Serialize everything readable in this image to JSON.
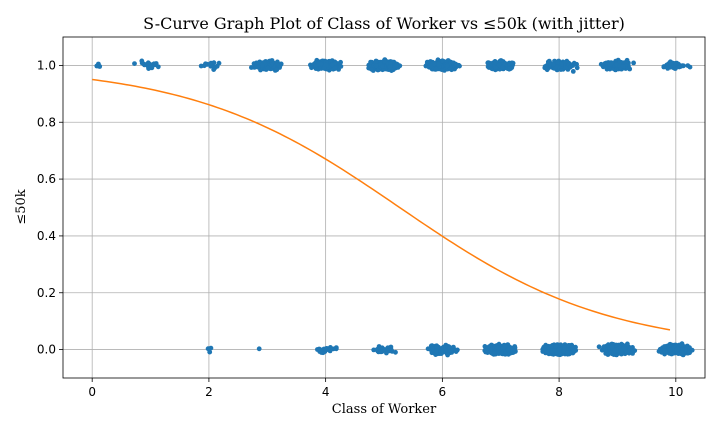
{
  "chart_data": {
    "type": "scatter",
    "title": "S-Curve Graph Plot of Class of Worker vs ≤50k (with jitter)",
    "xlabel": "Class of Worker",
    "ylabel": "≤50k",
    "xlim": [
      -0.5,
      10.5
    ],
    "ylim": [
      -0.1,
      1.1
    ],
    "xticks": [
      0,
      2,
      4,
      6,
      8,
      10
    ],
    "yticks": [
      0.0,
      0.2,
      0.4,
      0.6,
      0.8,
      1.0
    ],
    "xtick_labels": [
      "0",
      "2",
      "4",
      "6",
      "8",
      "10"
    ],
    "ytick_labels": [
      "0.0",
      "0.2",
      "0.4",
      "0.6",
      "0.8",
      "1.0"
    ],
    "grid": true,
    "jitter": {
      "x": 0.18,
      "y": 0.012
    },
    "series": [
      {
        "kind": "points",
        "color": "#1f77b4",
        "clusters": [
          {
            "x": 0,
            "y": 1,
            "n": 4
          },
          {
            "x": 1,
            "y": 1,
            "n": 22
          },
          {
            "x": 2,
            "y": 1,
            "n": 14
          },
          {
            "x": 3,
            "y": 1,
            "n": 120
          },
          {
            "x": 4,
            "y": 1,
            "n": 260
          },
          {
            "x": 5,
            "y": 1,
            "n": 420
          },
          {
            "x": 6,
            "y": 1,
            "n": 520
          },
          {
            "x": 7,
            "y": 1,
            "n": 160
          },
          {
            "x": 8,
            "y": 1,
            "n": 140
          },
          {
            "x": 9,
            "y": 1,
            "n": 150
          },
          {
            "x": 10,
            "y": 1,
            "n": 40
          },
          {
            "x": 2,
            "y": 0,
            "n": 3
          },
          {
            "x": 3,
            "y": 0,
            "n": 1
          },
          {
            "x": 4,
            "y": 0,
            "n": 22
          },
          {
            "x": 5,
            "y": 0,
            "n": 26
          },
          {
            "x": 6,
            "y": 0,
            "n": 160
          },
          {
            "x": 7,
            "y": 0,
            "n": 520
          },
          {
            "x": 8,
            "y": 0,
            "n": 900
          },
          {
            "x": 9,
            "y": 0,
            "n": 760
          },
          {
            "x": 10,
            "y": 0,
            "n": 500
          }
        ]
      },
      {
        "kind": "logistic-curve",
        "color": "#ff7f0e",
        "x_start": 0,
        "x_end": 9.9,
        "intercept": 2.95,
        "slope": -0.56
      }
    ]
  }
}
